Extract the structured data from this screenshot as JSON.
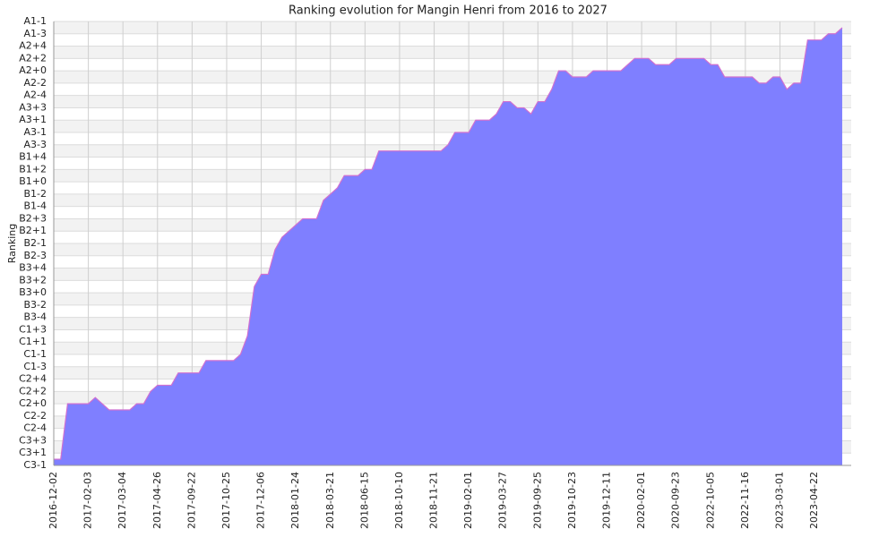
{
  "chart_data": {
    "type": "area",
    "title": "Ranking evolution for Mangin Henri from 2016 to 2027",
    "y_label": "Ranking",
    "categories": [
      "2016-12-02",
      null,
      null,
      null,
      null,
      "2017-02-03",
      null,
      null,
      null,
      null,
      "2017-03-04",
      null,
      null,
      null,
      null,
      "2017-04-26",
      null,
      null,
      null,
      null,
      "2017-09-22",
      null,
      null,
      null,
      null,
      "2017-10-25",
      null,
      null,
      null,
      null,
      "2017-12-06",
      null,
      null,
      null,
      null,
      "2018-01-24",
      null,
      null,
      null,
      null,
      "2018-03-21",
      null,
      null,
      null,
      null,
      "2018-06-15",
      null,
      null,
      null,
      null,
      "2018-10-10",
      null,
      null,
      null,
      null,
      "2018-11-21",
      null,
      null,
      null,
      null,
      "2019-02-01",
      null,
      null,
      null,
      null,
      "2019-03-27",
      null,
      null,
      null,
      null,
      "2019-09-25",
      null,
      null,
      null,
      null,
      "2019-10-23",
      null,
      null,
      null,
      null,
      "2019-12-11",
      null,
      null,
      null,
      null,
      "2020-02-01",
      null,
      null,
      null,
      null,
      "2020-09-23",
      null,
      null,
      null,
      null,
      "2022-10-05",
      null,
      null,
      null,
      null,
      "2022-11-16",
      null,
      null,
      null,
      null,
      "2023-03-01",
      null,
      null,
      null,
      null,
      "2023-04-22",
      null,
      null,
      null,
      null
    ],
    "series": [
      {
        "color": "#7f7fff",
        "line_color": "#d070d0",
        "values": [
          0.5,
          0.5,
          5,
          5,
          5,
          5,
          5.5,
          5,
          4.5,
          4.5,
          4.5,
          4.5,
          5,
          5,
          6,
          6.5,
          6.5,
          6.5,
          7.5,
          7.5,
          7.5,
          7.5,
          8.5,
          8.5,
          8.5,
          8.5,
          8.5,
          9,
          10.5,
          14.5,
          15.5,
          15.5,
          17.5,
          18.5,
          19,
          19.5,
          20,
          20,
          20,
          21.5,
          22,
          22.5,
          23.5,
          23.5,
          23.5,
          24,
          24,
          25.5,
          25.5,
          25.5,
          25.5,
          25.5,
          25.5,
          25.5,
          25.5,
          25.5,
          25.5,
          26,
          27,
          27,
          27,
          28,
          28,
          28,
          28.5,
          29.5,
          29.5,
          29,
          29,
          28.5,
          29.5,
          29.5,
          30.5,
          32,
          32,
          31.5,
          31.5,
          31.5,
          32,
          32,
          32,
          32,
          32,
          32.5,
          33,
          33,
          33,
          32.5,
          32.5,
          32.5,
          33,
          33,
          33,
          33,
          33,
          32.5,
          32.5,
          31.5,
          31.5,
          31.5,
          31.5,
          31.5,
          31,
          31,
          31.5,
          31.5,
          30.5,
          31,
          31,
          34.5,
          34.5,
          34.5,
          35,
          35,
          35.5
        ]
      }
    ],
    "ylim": [
      0,
      36
    ],
    "yticks": [
      {
        "value": 0,
        "label": "C3-1"
      },
      {
        "value": 1,
        "label": "C3+1"
      },
      {
        "value": 2,
        "label": "C3+3"
      },
      {
        "value": 3,
        "label": "C2-4"
      },
      {
        "value": 4,
        "label": "C2-2"
      },
      {
        "value": 5,
        "label": "C2+0"
      },
      {
        "value": 6,
        "label": "C2+2"
      },
      {
        "value": 7,
        "label": "C2+4"
      },
      {
        "value": 8,
        "label": "C1-3"
      },
      {
        "value": 9,
        "label": "C1-1"
      },
      {
        "value": 10,
        "label": "C1+1"
      },
      {
        "value": 11,
        "label": "C1+3"
      },
      {
        "value": 12,
        "label": "B3-4"
      },
      {
        "value": 13,
        "label": "B3-2"
      },
      {
        "value": 14,
        "label": "B3+0"
      },
      {
        "value": 15,
        "label": "B3+2"
      },
      {
        "value": 16,
        "label": "B3+4"
      },
      {
        "value": 17,
        "label": "B2-3"
      },
      {
        "value": 18,
        "label": "B2-1"
      },
      {
        "value": 19,
        "label": "B2+1"
      },
      {
        "value": 20,
        "label": "B2+3"
      },
      {
        "value": 21,
        "label": "B1-4"
      },
      {
        "value": 22,
        "label": "B1-2"
      },
      {
        "value": 23,
        "label": "B1+0"
      },
      {
        "value": 24,
        "label": "B1+2"
      },
      {
        "value": 25,
        "label": "B1+4"
      },
      {
        "value": 26,
        "label": "A3-3"
      },
      {
        "value": 27,
        "label": "A3-1"
      },
      {
        "value": 28,
        "label": "A3+1"
      },
      {
        "value": 29,
        "label": "A3+3"
      },
      {
        "value": 30,
        "label": "A2-4"
      },
      {
        "value": 31,
        "label": "A2-2"
      },
      {
        "value": 32,
        "label": "A2+0"
      },
      {
        "value": 33,
        "label": "A2+2"
      },
      {
        "value": 34,
        "label": "A2+4"
      },
      {
        "value": 35,
        "label": "A1-3"
      },
      {
        "value": 36,
        "label": "A1-1"
      }
    ],
    "grid": true
  }
}
